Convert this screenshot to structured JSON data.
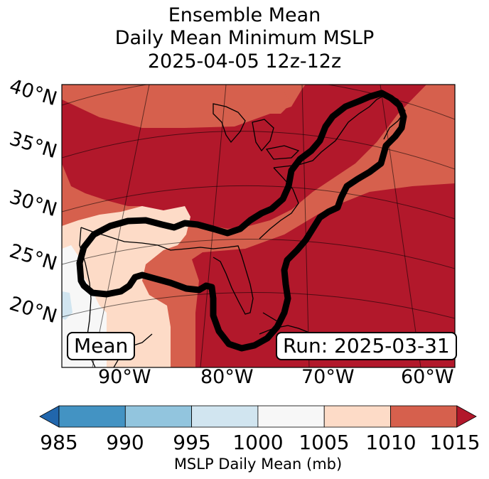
{
  "title": {
    "line1": "Ensemble Mean",
    "line2": "Daily Mean Minimum MSLP",
    "line3": "2025-04-05 12z-12z"
  },
  "map": {
    "lat_labels": [
      "40°N",
      "35°N",
      "30°N",
      "25°N",
      "20°N"
    ],
    "lon_labels": [
      "90°W",
      "80°W",
      "70°W",
      "60°W"
    ],
    "mean_badge": "Mean",
    "run_badge": "Run: 2025-03-31"
  },
  "colorbar": {
    "ticks": [
      "985",
      "990",
      "995",
      "1000",
      "1005",
      "1010",
      "1015"
    ],
    "label": "MSLP Daily Mean (mb)",
    "colors": {
      "lt985": "#2166ac",
      "985_990": "#4393c3",
      "990_995": "#92c5de",
      "995_1000": "#d1e5f0",
      "1000_1005": "#f7f7f7",
      "1005_1010": "#fddbc7",
      "1010_1015": "#d6604d",
      "gt1015": "#b2182b"
    }
  }
}
